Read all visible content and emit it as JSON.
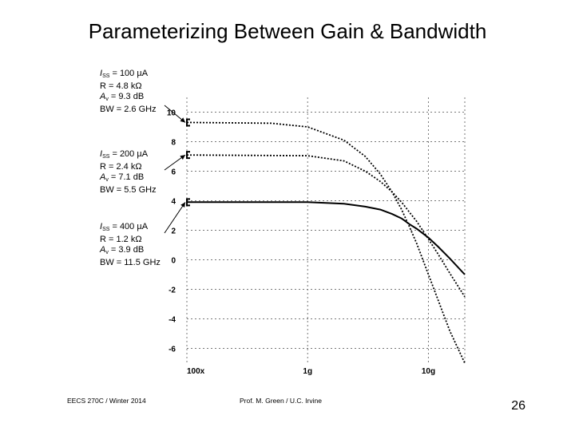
{
  "slide": {
    "title": "Parameterizing Between Gain & Bandwidth",
    "footer_left": "EECS 270C / Winter 2014",
    "footer_center": "Prof. M. Green / U.C. Irvine",
    "page_number": "26"
  },
  "annotations": [
    {
      "iss_prefix": "I",
      "iss_sub": "SS",
      "iss_value": " = 100 µA",
      "r": "R = 4.8 kΩ",
      "av_prefix": "A",
      "av_sub": "v",
      "av_value": " = 9.3 dB",
      "bw": "BW = 2.6 GHz"
    },
    {
      "iss_prefix": "I",
      "iss_sub": "SS",
      "iss_value": " = 200 µA",
      "r": "R = 2.4 kΩ",
      "av_prefix": "A",
      "av_sub": "v",
      "av_value": " = 7.1 dB",
      "bw": "BW = 5.5 GHz"
    },
    {
      "iss_prefix": "I",
      "iss_sub": "SS",
      "iss_value": " = 400 µA",
      "r": "R = 1.2 kΩ",
      "av_prefix": "A",
      "av_sub": "v",
      "av_value": " = 3.9 dB",
      "bw": "BW = 11.5 GHz"
    }
  ],
  "chart_data": {
    "type": "line",
    "x_scale": "log",
    "xlim": [
      100000000,
      20000000000
    ],
    "ylim": [
      -7,
      11
    ],
    "x_ticks": [
      {
        "value": 100000000,
        "label": "100x"
      },
      {
        "value": 1000000000,
        "label": "1g"
      },
      {
        "value": 10000000000,
        "label": "10g"
      }
    ],
    "y_ticks": [
      {
        "value": 10,
        "label": "10"
      },
      {
        "value": 8,
        "label": "8"
      },
      {
        "value": 6,
        "label": "6"
      },
      {
        "value": 4,
        "label": "4"
      },
      {
        "value": 2,
        "label": "2"
      },
      {
        "value": 0,
        "label": "0"
      },
      {
        "value": -2,
        "label": "-2"
      },
      {
        "value": -4,
        "label": "-4"
      },
      {
        "value": -6,
        "label": "-6"
      }
    ],
    "grid": true,
    "series": [
      {
        "color": "#000000",
        "dash": "dotted",
        "x": [
          100000000,
          500000000,
          1000000000,
          2000000000,
          3000000000,
          4000000000,
          5000000000,
          6000000000,
          7000000000,
          8000000000,
          10000000000,
          12000000000,
          15000000000,
          20000000000
        ],
        "y": [
          9.3,
          9.25,
          9.0,
          8.1,
          7.0,
          5.8,
          4.6,
          3.4,
          2.2,
          1.1,
          -1.0,
          -2.7,
          -4.8,
          -7.0
        ]
      },
      {
        "color": "#000000",
        "dash": "dotted",
        "x": [
          100000000,
          1000000000,
          2000000000,
          3000000000,
          4000000000,
          5000000000,
          6000000000,
          7000000000,
          8000000000,
          10000000000,
          12000000000,
          15000000000,
          20000000000
        ],
        "y": [
          7.1,
          7.05,
          6.7,
          6.0,
          5.3,
          4.6,
          3.9,
          3.2,
          2.6,
          1.4,
          0.4,
          -0.9,
          -2.5
        ]
      },
      {
        "color": "#000000",
        "dash": "solid",
        "x": [
          100000000,
          1000000000,
          2000000000,
          3000000000,
          4000000000,
          5000000000,
          6000000000,
          7000000000,
          8000000000,
          10000000000,
          12000000000,
          15000000000,
          20000000000
        ],
        "y": [
          3.9,
          3.9,
          3.8,
          3.6,
          3.4,
          3.1,
          2.8,
          2.4,
          2.1,
          1.5,
          0.9,
          0.1,
          -1.0
        ]
      }
    ]
  }
}
